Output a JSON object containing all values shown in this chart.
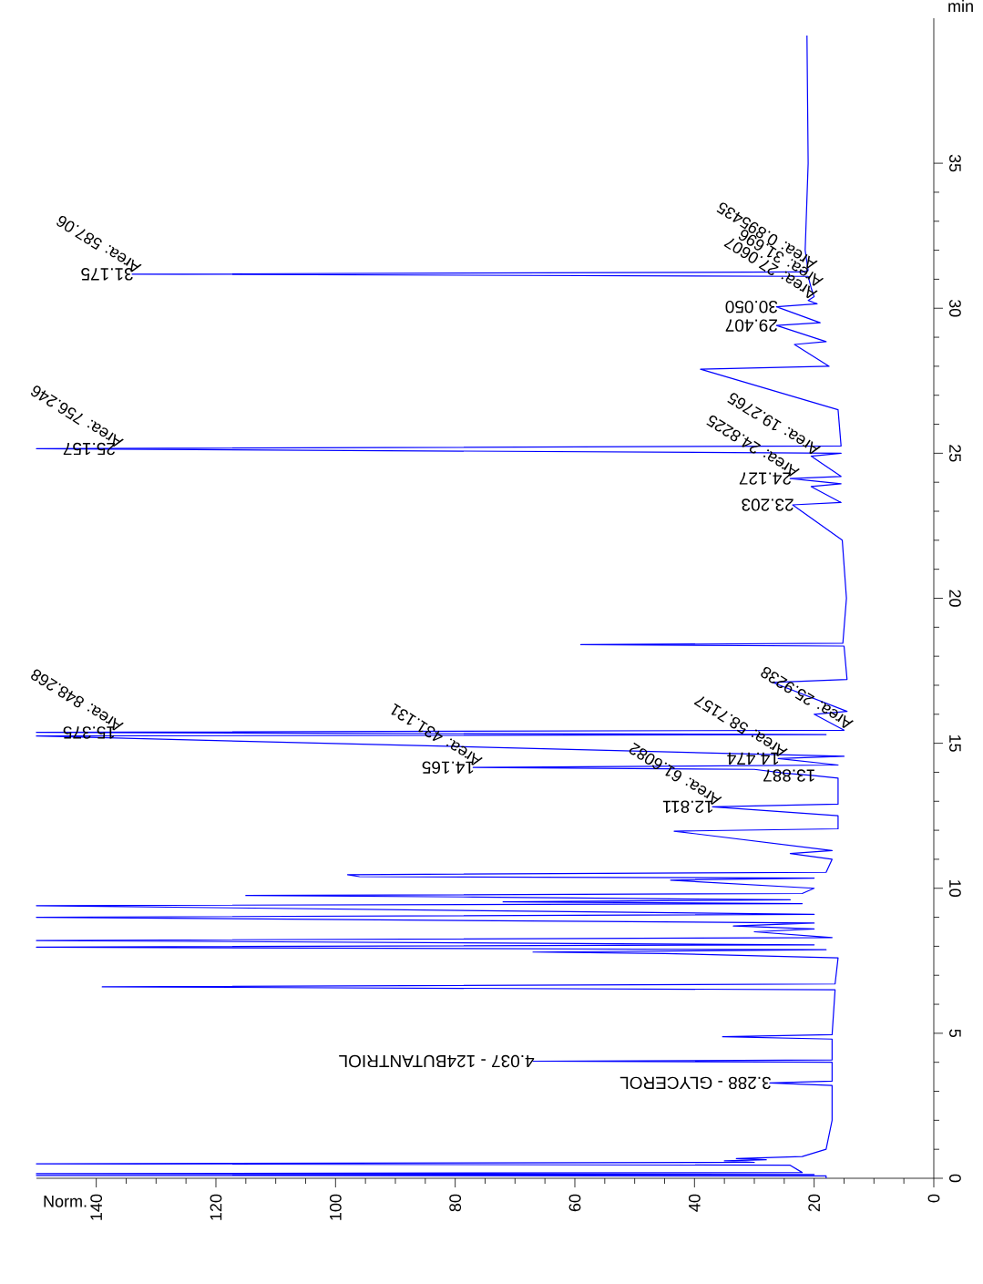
{
  "chart_data": {
    "type": "line",
    "xlabel": "Norm.",
    "ylabel": "min",
    "xlim": [
      150,
      0
    ],
    "ylim": [
      0,
      40
    ],
    "xticks": [
      0,
      20,
      40,
      60,
      80,
      100,
      120,
      140
    ],
    "yticks": [
      0,
      5,
      10,
      15,
      20,
      25,
      30,
      35
    ],
    "series": [
      {
        "color": "#0000ff",
        "values": [
          0,
          0.08,
          0.1,
          0.13,
          0.16,
          0.2,
          0.45,
          0.5,
          0.55,
          0.6,
          0.64,
          0.68,
          0.75,
          1.0,
          2.0,
          3.2,
          3.288,
          3.35,
          4.0,
          4.037,
          4.08,
          4.8,
          4.88,
          4.95,
          6.5,
          6.6,
          6.7,
          7.6,
          7.75,
          7.8,
          7.88,
          7.97,
          8.05,
          8.2,
          8.3,
          8.5,
          8.6,
          8.7,
          8.8,
          9.0,
          9.1,
          9.4,
          9.47,
          9.53,
          9.6,
          9.7,
          9.75,
          9.82,
          10.0,
          10.28,
          10.35,
          10.4,
          10.47,
          10.55,
          11.0,
          11.2,
          11.3,
          11.97,
          12.05,
          12.5,
          12.811,
          12.9,
          13.8,
          13.887,
          13.97,
          14.1,
          14.165,
          14.25,
          14.474,
          14.55,
          15.25,
          15.3,
          15.375,
          15.45,
          16.0,
          16.1,
          17.1,
          17.2,
          18.35,
          18.4,
          18.45,
          20,
          22,
          23.22,
          23.3,
          23.85,
          23.95,
          24.127,
          24.2,
          24.9,
          25.0,
          25.157,
          25.25,
          26.5,
          27.9,
          28.0,
          28.75,
          28.85,
          29.407,
          29.5,
          30.05,
          30.15,
          30.27,
          30.4,
          30.7,
          31.1,
          31.175,
          31.25,
          31.3,
          32,
          35,
          39.4
        ],
        "x": [
          18,
          18,
          150,
          20,
          150,
          22,
          24,
          150,
          30,
          35,
          28,
          33,
          22,
          18,
          17,
          17,
          27.4,
          17,
          17,
          67,
          17,
          17,
          35.3,
          17,
          16.5,
          139,
          16.5,
          16,
          45,
          67,
          18,
          150,
          20,
          150,
          17,
          30,
          20,
          33.5,
          20,
          150,
          20,
          150,
          22,
          72,
          24,
          77,
          115,
          22,
          20,
          44,
          20,
          96,
          98,
          18,
          17,
          24,
          17,
          43.4,
          16,
          16,
          37,
          16,
          16,
          20,
          25,
          30,
          77,
          16,
          26,
          15,
          150,
          18,
          150,
          15,
          20,
          14.5,
          27,
          14.5,
          15,
          59,
          15.2,
          14.6,
          15.3,
          23.6,
          15.5,
          20.5,
          15.5,
          24,
          15.5,
          20.5,
          15.5,
          150,
          15.5,
          16,
          39,
          17.5,
          23.3,
          18,
          26.3,
          19,
          26.3,
          19.5,
          21,
          20,
          20.5,
          21,
          134,
          22,
          21,
          21.5,
          21,
          21.2
        ]
      }
    ],
    "annotations": [
      {
        "text": "3.288 - GLYCEROL",
        "x": 27.4,
        "y": 3.288
      },
      {
        "text": "4.037 - 124BUTANTRIOL",
        "x": 67,
        "y": 4.037
      },
      {
        "text": "12.811",
        "x": 37,
        "y": 12.811
      },
      {
        "text": "13.887",
        "x": 20,
        "y": 13.887
      },
      {
        "text": "14.165",
        "x": 77,
        "y": 14.165
      },
      {
        "text": "14.474",
        "x": 26,
        "y": 14.474
      },
      {
        "text": "15.375",
        "x": 137,
        "y": 15.368
      },
      {
        "text": "23.203",
        "x": 23.6,
        "y": 23.22
      },
      {
        "text": "24.127",
        "x": 24,
        "y": 24.127
      },
      {
        "text": "25.157",
        "x": 137,
        "y": 25.151
      },
      {
        "text": "29.407",
        "x": 26.3,
        "y": 29.407
      },
      {
        "text": "30.050",
        "x": 26.3,
        "y": 30.05
      },
      {
        "text": "31.175",
        "x": 134,
        "y": 31.175
      },
      {
        "text": "Area: 61.6082",
        "x": 37,
        "y": 12.811
      },
      {
        "text": "Area: 431.131",
        "x": 77,
        "y": 14.165
      },
      {
        "text": "Area: 58.7157",
        "x": 26,
        "y": 14.474
      },
      {
        "text": "Area: 25.9238",
        "x": 15,
        "y": 15.45
      },
      {
        "text": "Area: 848.268",
        "x": 137,
        "y": 15.368
      },
      {
        "text": "Area: 24.8225",
        "x": 24,
        "y": 24.127
      },
      {
        "text": "Area: 19.2765",
        "x": 20.5,
        "y": 24.9
      },
      {
        "text": "Area: 756.246",
        "x": 137,
        "y": 25.151
      },
      {
        "text": "Area: 27.0607",
        "x": 21,
        "y": 30.27
      },
      {
        "text": "Area: 31.696",
        "x": 20,
        "y": 30.7
      },
      {
        "text": "Area: 0.895435",
        "x": 21,
        "y": 31.3
      },
      {
        "text": "Area: 587.06",
        "x": 134,
        "y": 31.175
      }
    ]
  }
}
